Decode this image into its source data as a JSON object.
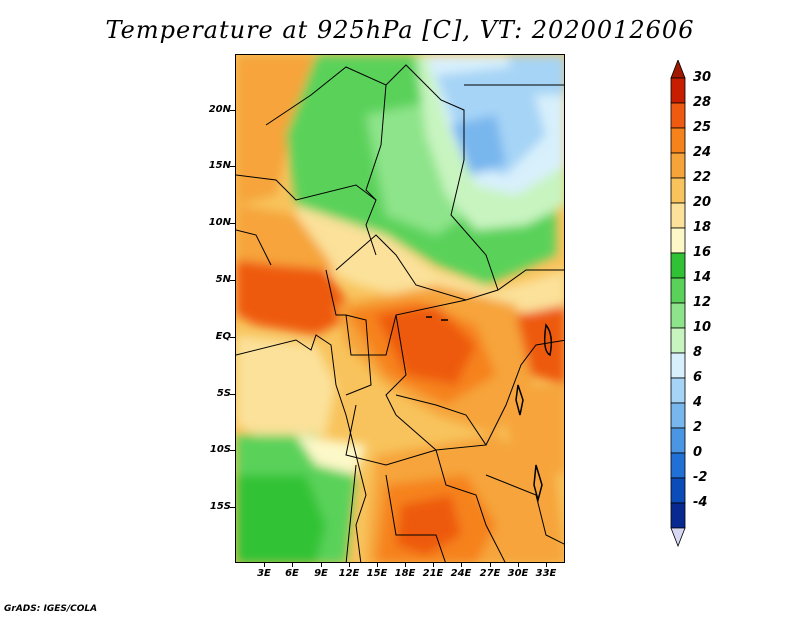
{
  "title": "Temperature at 925hPa [C], VT: 2020012606",
  "lat_labels": [
    "20N",
    "15N",
    "10N",
    "5N",
    "EQ",
    "5S",
    "10S",
    "15S"
  ],
  "lon_labels": [
    "3E",
    "6E",
    "9E",
    "12E",
    "15E",
    "18E",
    "21E",
    "24E",
    "27E",
    "30E",
    "33E"
  ],
  "colorbar": {
    "labels": [
      "30",
      "28",
      "25",
      "24",
      "22",
      "20",
      "18",
      "16",
      "14",
      "12",
      "10",
      "8",
      "6",
      "4",
      "2",
      "0",
      "-2",
      "-4"
    ],
    "colors": [
      "#c81e00",
      "#ee5a10",
      "#f6821c",
      "#f6a43a",
      "#f8c35c",
      "#fbe19a",
      "#fdf8c8",
      "#30c234",
      "#5ad25a",
      "#8ee48a",
      "#c8f4c0",
      "#d8f0fc",
      "#a6d4f6",
      "#78b6ee",
      "#4a96e4",
      "#2070d6",
      "#0c4cb8",
      "#082a90"
    ],
    "top_triangle_color": "#a01800",
    "bottom_triangle_color": "#d8d8f4"
  },
  "credit": "GrADS: IGES/COLA"
}
